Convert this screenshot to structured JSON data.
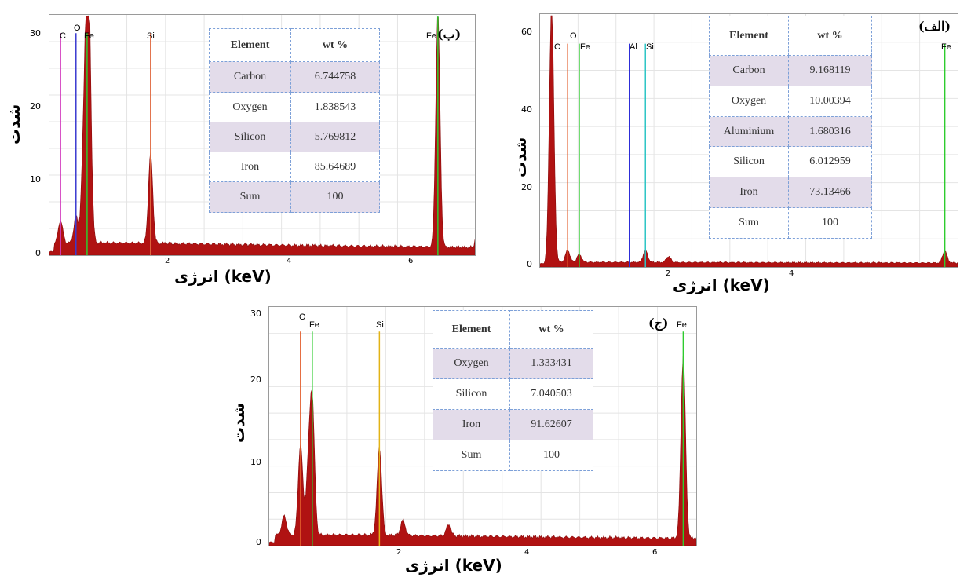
{
  "colors": {
    "spectrum": "#b01212",
    "C": "#d23cbf",
    "O": "#e25b2a",
    "Fe": "#2ecc2e",
    "Al": "#2a2ad8",
    "Si": "#e2b316",
    "Si_b": "#e06a40",
    "Si_a": "#2bc5c5",
    "O_b": "#3a3ad0"
  },
  "axis": {
    "y_label": "شدت",
    "x_label": "انرژی (keV)"
  },
  "panels": [
    {
      "id": "b",
      "label": "(ب)",
      "table": {
        "headers": [
          "Element",
          "wt %"
        ],
        "rows": [
          [
            "Carbon",
            "6.744758"
          ],
          [
            "Oxygen",
            "1.838543"
          ],
          [
            "Silicon",
            "5.769812"
          ],
          [
            "Iron",
            "85.64689"
          ],
          [
            "Sum",
            "100"
          ]
        ]
      },
      "y_ticks": [
        "0",
        "10",
        "20",
        "30"
      ],
      "x_ticks": [
        "2",
        "4",
        "6"
      ],
      "peak_labels": [
        "C",
        "O",
        "Fe",
        "Si",
        "Fe"
      ]
    },
    {
      "id": "a",
      "label": "(الف)",
      "table": {
        "headers": [
          "Element",
          "wt %"
        ],
        "rows": [
          [
            "Carbon",
            "9.168119"
          ],
          [
            "Oxygen",
            "10.00394"
          ],
          [
            "Aluminium",
            "1.680316"
          ],
          [
            "Silicon",
            "6.012959"
          ],
          [
            "Iron",
            "73.13466"
          ],
          [
            "Sum",
            "100"
          ]
        ]
      },
      "y_ticks": [
        "0",
        "20",
        "40",
        "60"
      ],
      "x_ticks": [
        "2",
        "4"
      ],
      "peak_labels": [
        "C",
        "O",
        "Fe",
        "Al",
        "Si",
        "Fe"
      ]
    },
    {
      "id": "c",
      "label": "(ج)",
      "table": {
        "headers": [
          "Element",
          "wt %"
        ],
        "rows": [
          [
            "Oxygen",
            "1.333431"
          ],
          [
            "Silicon",
            "7.040503"
          ],
          [
            "Iron",
            "91.62607"
          ],
          [
            "Sum",
            "100"
          ]
        ]
      },
      "y_ticks": [
        "0",
        "10",
        "20",
        "30"
      ],
      "x_ticks": [
        "2",
        "4",
        "6"
      ],
      "peak_labels": [
        "O",
        "Fe",
        "Si",
        "Fe"
      ]
    }
  ],
  "chart_data": [
    {
      "type": "area",
      "xlabel": "انرژی (keV)",
      "ylabel": "شدت",
      "xlim": [
        0.1,
        7.0
      ],
      "ylim": [
        0,
        31
      ],
      "markers": [
        {
          "element": "C",
          "x": 0.28,
          "height": 28.8
        },
        {
          "element": "O",
          "x": 0.53,
          "height": 28.8
        },
        {
          "element": "Fe",
          "x": 0.71,
          "height": 28.8
        },
        {
          "element": "Si",
          "x": 1.74,
          "height": 28.8
        },
        {
          "element": "Fe",
          "x": 6.4,
          "height": 31
        }
      ],
      "peaks": [
        {
          "x": 0.28,
          "y": 3
        },
        {
          "x": 0.53,
          "y": 3.5
        },
        {
          "x": 0.65,
          "y": 11
        },
        {
          "x": 0.71,
          "y": 28
        },
        {
          "x": 0.75,
          "y": 18
        },
        {
          "x": 1.74,
          "y": 12
        },
        {
          "x": 6.4,
          "y": 31
        },
        {
          "x": 7.06,
          "y": 4
        }
      ],
      "background": 1.2
    },
    {
      "type": "area",
      "xlabel": "انرژی (keV)",
      "ylabel": "شدت",
      "xlim": [
        0.1,
        6.6
      ],
      "ylim": [
        0,
        62
      ],
      "markers": [
        {
          "element": "C",
          "x": 0.28,
          "height": 58
        },
        {
          "element": "O",
          "x": 0.53,
          "height": 55
        },
        {
          "element": "Fe",
          "x": 0.71,
          "height": 55
        },
        {
          "element": "Al",
          "x": 1.49,
          "height": 55
        },
        {
          "element": "Si",
          "x": 1.74,
          "height": 55
        },
        {
          "element": "Fe",
          "x": 6.4,
          "height": 55
        }
      ],
      "peaks": [
        {
          "x": 0.28,
          "y": 65
        },
        {
          "x": 0.53,
          "y": 3
        },
        {
          "x": 0.71,
          "y": 2
        },
        {
          "x": 1.74,
          "y": 3
        },
        {
          "x": 2.1,
          "y": 1.5
        },
        {
          "x": 6.4,
          "y": 3
        }
      ],
      "background": 0.4
    },
    {
      "type": "area",
      "xlabel": "انرژی (keV)",
      "ylabel": "شدت",
      "xlim": [
        0.05,
        6.6
      ],
      "ylim": [
        0,
        30.5
      ],
      "markers": [
        {
          "element": "O",
          "x": 0.53,
          "height": 27.5
        },
        {
          "element": "Fe",
          "x": 0.71,
          "height": 27.5
        },
        {
          "element": "Si",
          "x": 1.74,
          "height": 27.5
        },
        {
          "element": "Fe",
          "x": 6.4,
          "height": 27.5
        }
      ],
      "peaks": [
        {
          "x": 0.28,
          "y": 2.5
        },
        {
          "x": 0.53,
          "y": 12
        },
        {
          "x": 0.65,
          "y": 8
        },
        {
          "x": 0.71,
          "y": 17
        },
        {
          "x": 1.74,
          "y": 11.5
        },
        {
          "x": 2.1,
          "y": 2
        },
        {
          "x": 2.8,
          "y": 1.5
        },
        {
          "x": 6.4,
          "y": 24
        }
      ],
      "background": 1.0
    }
  ]
}
